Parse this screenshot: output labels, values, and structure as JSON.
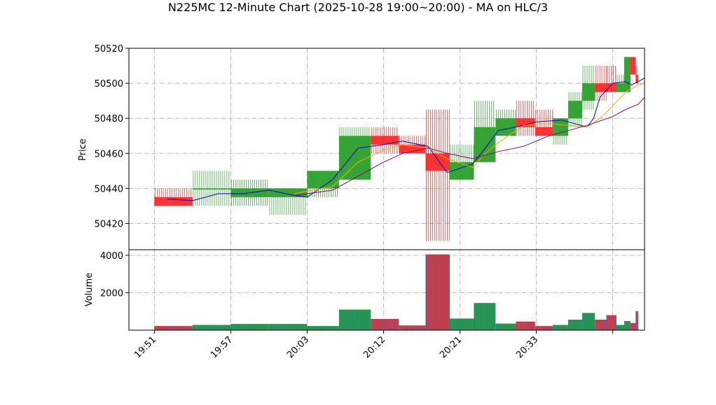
{
  "chart_data": {
    "type": "candlestick",
    "title": "N225MC 12-Minute Chart (2025-10-28 19:00~20:00) - MA on HLC/3",
    "grid": true,
    "price_panel": {
      "ylabel": "Price",
      "ylim": [
        50405,
        50520
      ],
      "yticks": [
        "50420",
        "50440",
        "50460",
        "50480",
        "50500",
        "50520"
      ],
      "ytick_values": [
        50420,
        50440,
        50460,
        50480,
        50500,
        50520
      ]
    },
    "volume_panel": {
      "ylabel": "Volume",
      "ylim": [
        0,
        4300
      ],
      "yticks": [
        "2000",
        "4000"
      ],
      "ytick_values": [
        2000,
        4000
      ]
    },
    "xlim": [
      -1,
      39.5
    ],
    "xticks": [
      {
        "pos": 1,
        "label": "19:51"
      },
      {
        "pos": 7,
        "label": "19:57"
      },
      {
        "pos": 13,
        "label": "20:03"
      },
      {
        "pos": 19,
        "label": "20:12"
      },
      {
        "pos": 25,
        "label": "20:21"
      },
      {
        "pos": 31,
        "label": "20:33"
      },
      {
        "pos": 37,
        "label": ""
      }
    ],
    "bars": [
      {
        "start": 1,
        "width": 3,
        "open": 50435,
        "high": 50440,
        "low": 50430,
        "close": 50430,
        "volume": 220
      },
      {
        "start": 4,
        "width": 3,
        "open": 50440,
        "high": 50450,
        "low": 50430,
        "close": 50440,
        "volume": 280
      },
      {
        "start": 7,
        "width": 3,
        "open": 50435,
        "high": 50445,
        "low": 50430,
        "close": 50440,
        "volume": 330
      },
      {
        "start": 10,
        "width": 3,
        "open": 50435,
        "high": 50440,
        "low": 50425,
        "close": 50440,
        "volume": 330
      },
      {
        "start": 13,
        "width": 2.5,
        "open": 50440,
        "high": 50450,
        "low": 50435,
        "close": 50450,
        "volume": 220
      },
      {
        "start": 15.5,
        "width": 2.5,
        "open": 50445,
        "high": 50475,
        "low": 50445,
        "close": 50470,
        "volume": 1100
      },
      {
        "start": 18,
        "width": 2.2,
        "open": 50470,
        "high": 50475,
        "low": 50460,
        "close": 50465,
        "volume": 600
      },
      {
        "start": 20.2,
        "width": 2.1,
        "open": 50465,
        "high": 50470,
        "low": 50460,
        "close": 50460,
        "volume": 250
      },
      {
        "start": 22.3,
        "width": 1.9,
        "open": 50460,
        "high": 50485,
        "low": 50410,
        "close": 50450,
        "volume": 4050
      },
      {
        "start": 24.2,
        "width": 1.9,
        "open": 50445,
        "high": 50465,
        "low": 50445,
        "close": 50455,
        "volume": 620
      },
      {
        "start": 26.1,
        "width": 1.7,
        "open": 50455,
        "high": 50490,
        "low": 50455,
        "close": 50475,
        "volume": 1450
      },
      {
        "start": 27.8,
        "width": 1.6,
        "open": 50470,
        "high": 50485,
        "low": 50470,
        "close": 50480,
        "volume": 350
      },
      {
        "start": 29.4,
        "width": 1.5,
        "open": 50480,
        "high": 50490,
        "low": 50470,
        "close": 50475,
        "volume": 460
      },
      {
        "start": 30.9,
        "width": 1.4,
        "open": 50475,
        "high": 50485,
        "low": 50470,
        "close": 50470,
        "volume": 220
      },
      {
        "start": 32.3,
        "width": 1.2,
        "open": 50470,
        "high": 50480,
        "low": 50465,
        "close": 50480,
        "volume": 280
      },
      {
        "start": 33.5,
        "width": 1.1,
        "open": 50480,
        "high": 50495,
        "low": 50475,
        "close": 50490,
        "volume": 560
      },
      {
        "start": 34.6,
        "width": 1.0,
        "open": 50490,
        "high": 50510,
        "low": 50485,
        "close": 50500,
        "volume": 920
      },
      {
        "start": 35.6,
        "width": 0.9,
        "open": 50500,
        "high": 50510,
        "low": 50490,
        "close": 50495,
        "volume": 560
      },
      {
        "start": 36.5,
        "width": 0.8,
        "open": 50500,
        "high": 50510,
        "low": 50495,
        "close": 50495,
        "volume": 800
      },
      {
        "start": 37.3,
        "width": 0.6,
        "open": 50495,
        "high": 50505,
        "low": 50495,
        "close": 50500,
        "volume": 280
      },
      {
        "start": 37.9,
        "width": 0.5,
        "open": 50495,
        "high": 50515,
        "low": 50495,
        "close": 50515,
        "volume": 490
      },
      {
        "start": 38.4,
        "width": 0.4,
        "open": 50515,
        "high": 50515,
        "low": 50505,
        "close": 50505,
        "volume": 380
      },
      {
        "start": 38.8,
        "width": 0.2,
        "open": 50505,
        "high": 50510,
        "low": 50500,
        "close": 50500,
        "volume": 1020
      }
    ],
    "moving_averages": [
      {
        "color": "#0000cc",
        "points": [
          [
            2,
            50434
          ],
          [
            4,
            50433
          ],
          [
            6,
            50437
          ],
          [
            8,
            50437
          ],
          [
            10,
            50439
          ],
          [
            12,
            50436
          ],
          [
            13,
            50435
          ],
          [
            15,
            50445
          ],
          [
            17,
            50463
          ],
          [
            19,
            50465
          ],
          [
            20.5,
            50467
          ],
          [
            22.5,
            50464
          ],
          [
            24,
            50449
          ],
          [
            26,
            50454
          ],
          [
            27,
            50463
          ],
          [
            28,
            50473
          ],
          [
            30,
            50476
          ],
          [
            31,
            50478
          ],
          [
            33,
            50479
          ],
          [
            35,
            50475
          ],
          [
            35.5,
            50480
          ],
          [
            36,
            50492
          ],
          [
            37,
            50500
          ],
          [
            38,
            50501
          ],
          [
            38.5,
            50499
          ],
          [
            39,
            50501
          ],
          [
            39.5,
            50503
          ]
        ]
      },
      {
        "color": "#ffaa00",
        "points": [
          [
            12,
            50437
          ],
          [
            15,
            50441
          ],
          [
            17,
            50455
          ],
          [
            19,
            50462
          ],
          [
            20.5,
            50465
          ],
          [
            22.5,
            50463
          ],
          [
            24,
            50457
          ],
          [
            26,
            50452
          ],
          [
            27,
            50460
          ],
          [
            28,
            50466
          ],
          [
            30,
            50476
          ],
          [
            32,
            50477
          ],
          [
            35,
            50475
          ],
          [
            36,
            50480
          ],
          [
            37,
            50487
          ],
          [
            38,
            50495
          ],
          [
            39,
            50499
          ],
          [
            39.5,
            50500
          ]
        ]
      },
      {
        "color": "#880088",
        "points": [
          [
            12,
            50436
          ],
          [
            15,
            50439
          ],
          [
            17,
            50447
          ],
          [
            19,
            50455
          ],
          [
            20.5,
            50460
          ],
          [
            22.5,
            50463
          ],
          [
            24,
            50460
          ],
          [
            26,
            50457
          ],
          [
            27,
            50459
          ],
          [
            28,
            50461
          ],
          [
            30,
            50464
          ],
          [
            32,
            50470
          ],
          [
            35,
            50476
          ],
          [
            37,
            50481
          ],
          [
            38,
            50485
          ],
          [
            39,
            50488
          ],
          [
            39.5,
            50492
          ]
        ]
      }
    ],
    "colors": {
      "up": "#2ca02c",
      "down": "#ff2a2a",
      "volume_edge": "#1f77b4",
      "grid": "#aaaaaa"
    }
  }
}
